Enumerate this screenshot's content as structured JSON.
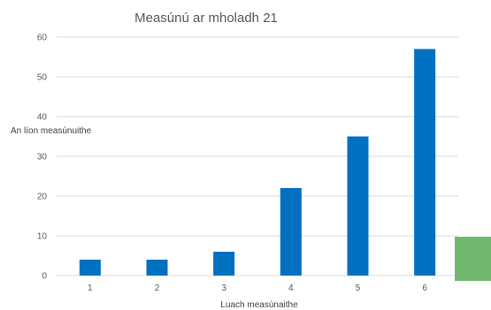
{
  "chart_data": {
    "type": "bar",
    "title": "Measúnú ar mholadh 21",
    "xlabel": "Luach measúnaithe",
    "ylabel": "An líon measúnuithe",
    "categories": [
      "1",
      "2",
      "3",
      "4",
      "5",
      "6"
    ],
    "values": [
      4,
      4,
      6,
      22,
      35,
      57
    ],
    "ylim": [
      0,
      60
    ],
    "yticks": [
      0,
      10,
      20,
      30,
      40,
      50,
      60
    ],
    "grid": true,
    "legend": "none",
    "bar_color": "#0070c0"
  },
  "decor": {
    "overlay_color": "#70b870"
  }
}
